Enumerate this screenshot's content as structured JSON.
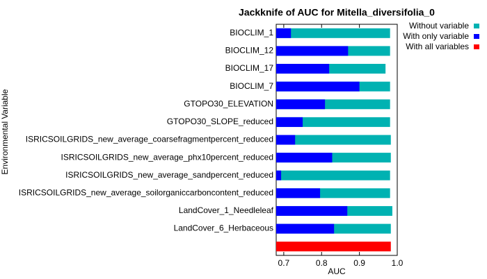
{
  "chart_data": {
    "type": "bar",
    "orientation": "horizontal",
    "title": "Jackknife of AUC for Mitella_diversifolia_0",
    "xlabel": "AUC",
    "ylabel": "Environmental Variable",
    "categories": [
      "BIOCLIM_1",
      "BIOCLIM_12",
      "BIOCLIM_17",
      "BIOCLIM_7",
      "GTOPO30_ELEVATION",
      "GTOPO30_SLOPE_reduced",
      "ISRICSOILGRIDS_new_average_coarsefragmentpercent_reduced",
      "ISRICSOILGRIDS_new_average_phx10percent_reduced",
      "ISRICSOILGRIDS_new_average_sandpercent_reduced",
      "ISRICSOILGRIDS_new_average_soilorganiccarboncontent_reduced",
      "LandCover_1_Needleleaf",
      "LandCover_6_Herbaceous",
      null
    ],
    "series": [
      {
        "name": "Without variable",
        "color": "#00b2b2",
        "values": [
          0.981,
          0.981,
          0.969,
          0.981,
          0.981,
          0.981,
          0.983,
          0.983,
          0.981,
          0.981,
          0.987,
          0.983,
          null
        ]
      },
      {
        "name": "With only variable",
        "color": "#0000ff",
        "values": [
          0.719,
          0.87,
          0.82,
          0.9,
          0.809,
          0.75,
          0.73,
          0.828,
          0.693,
          0.796,
          0.868,
          0.833,
          null
        ]
      },
      {
        "name": "With all variables",
        "color": "#ff0000",
        "values": [
          null,
          null,
          null,
          null,
          null,
          null,
          null,
          null,
          null,
          null,
          null,
          null,
          0.983
        ]
      }
    ],
    "xlim": [
      0.68,
      1.0
    ],
    "xticks": [
      0.7,
      0.8,
      0.9,
      {
        "value": 1.0,
        "label": "1.0"
      }
    ],
    "legend": "upper right"
  }
}
